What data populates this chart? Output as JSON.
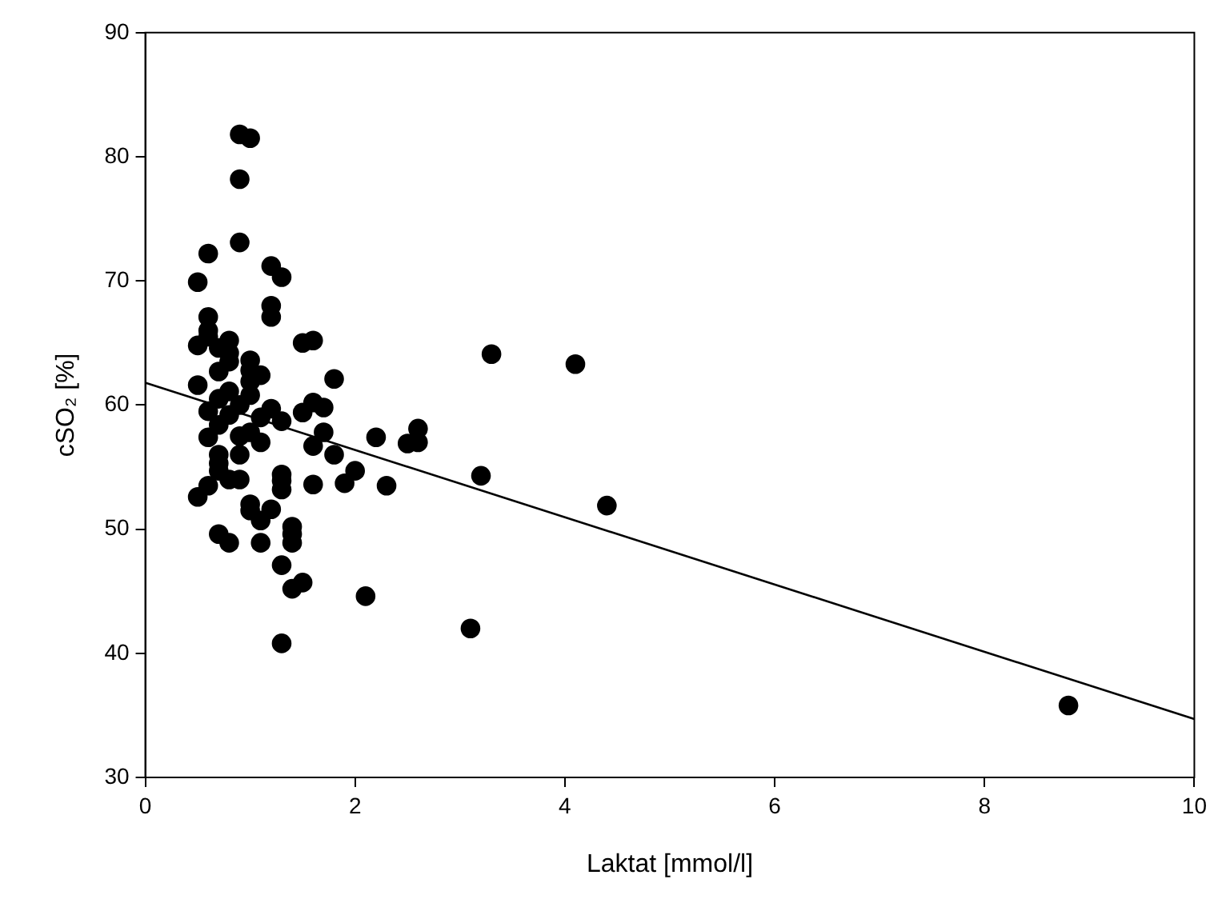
{
  "chart_data": {
    "type": "scatter",
    "xlabel": "Laktat [mmol/l]",
    "ylabel": "cSO₂ [%]",
    "xlim": [
      0,
      10
    ],
    "xticks": [
      0,
      2,
      4,
      6,
      8,
      10
    ],
    "ylim": [
      30,
      90
    ],
    "yticks": [
      30,
      40,
      50,
      60,
      70,
      80,
      90
    ],
    "grid": false,
    "marker": "circle",
    "series": [
      {
        "color": "#000000",
        "x": [
          0.9,
          1.0,
          0.9,
          0.9,
          0.6,
          1.2,
          1.3,
          0.5,
          1.2,
          1.2,
          0.6,
          0.6,
          0.5,
          0.6,
          0.7,
          0.8,
          0.8,
          0.8,
          1.0,
          1.0,
          0.7,
          0.5,
          0.8,
          1.0,
          1.1,
          1.0,
          0.9,
          0.7,
          0.6,
          0.7,
          0.8,
          0.6,
          0.9,
          1.0,
          1.1,
          1.1,
          1.2,
          1.3,
          1.5,
          1.6,
          1.7,
          1.5,
          1.6,
          1.8,
          1.7,
          1.6,
          1.8,
          0.7,
          0.7,
          0.7,
          0.6,
          0.8,
          0.9,
          0.9,
          0.5,
          1.0,
          1.0,
          1.2,
          1.3,
          1.3,
          1.3,
          1.6,
          1.9,
          2.0,
          2.2,
          2.3,
          2.5,
          2.6,
          2.6,
          1.1,
          1.1,
          0.7,
          0.8,
          1.4,
          1.4,
          1.4,
          1.3,
          1.4,
          1.5,
          2.1,
          1.3,
          3.1,
          3.2,
          3.3,
          4.1,
          4.4,
          8.8
        ],
        "values": [
          81.8,
          81.5,
          78.2,
          73.1,
          72.2,
          71.2,
          70.3,
          69.9,
          68.0,
          67.1,
          67.1,
          66.0,
          64.8,
          65.5,
          64.6,
          65.2,
          64.2,
          63.5,
          63.6,
          62.8,
          62.7,
          61.6,
          61.1,
          61.9,
          62.4,
          60.8,
          60.0,
          60.5,
          59.5,
          58.4,
          59.2,
          57.4,
          57.5,
          57.8,
          57.0,
          59.0,
          59.7,
          58.7,
          59.4,
          60.2,
          59.8,
          65.0,
          65.2,
          62.1,
          57.8,
          56.7,
          56.0,
          56.0,
          55.3,
          54.7,
          53.5,
          54.0,
          54.0,
          56.0,
          52.6,
          52.0,
          51.5,
          51.6,
          53.9,
          53.2,
          54.4,
          53.6,
          53.7,
          54.7,
          57.4,
          53.5,
          56.9,
          57.0,
          58.1,
          50.7,
          48.9,
          49.6,
          48.9,
          50.2,
          49.6,
          48.9,
          47.1,
          45.2,
          45.7,
          44.6,
          40.8,
          42.0,
          54.3,
          64.1,
          63.3,
          51.9,
          35.8
        ]
      },
      {
        "type": "line",
        "color": "#000000",
        "x": [
          0,
          10
        ],
        "values": [
          61.8,
          34.7
        ],
        "marker": "none",
        "line_style": "solid"
      }
    ]
  }
}
